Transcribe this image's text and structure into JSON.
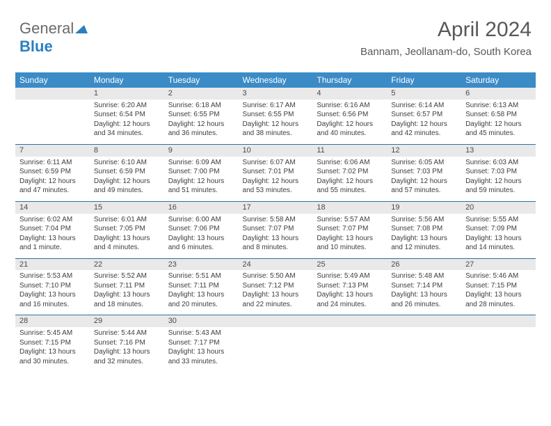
{
  "brand": {
    "part1": "General",
    "part2": "Blue"
  },
  "title": "April 2024",
  "location": "Bannam, Jeollanam-do, South Korea",
  "colors": {
    "header_bg": "#3b8bc7",
    "header_text": "#ffffff",
    "daynum_bg": "#e9e9e9",
    "row_border": "#2f6fa6",
    "text": "#3d3d3d",
    "title_text": "#585858"
  },
  "weekdays": [
    "Sunday",
    "Monday",
    "Tuesday",
    "Wednesday",
    "Thursday",
    "Friday",
    "Saturday"
  ],
  "cell_fontsize": 10,
  "header_fontsize": 12,
  "title_fontsize": 30,
  "location_fontsize": 15,
  "weeks": [
    [
      null,
      {
        "n": "1",
        "sr": "Sunrise: 6:20 AM",
        "ss": "Sunset: 6:54 PM",
        "dl": "Daylight: 12 hours and 34 minutes."
      },
      {
        "n": "2",
        "sr": "Sunrise: 6:18 AM",
        "ss": "Sunset: 6:55 PM",
        "dl": "Daylight: 12 hours and 36 minutes."
      },
      {
        "n": "3",
        "sr": "Sunrise: 6:17 AM",
        "ss": "Sunset: 6:55 PM",
        "dl": "Daylight: 12 hours and 38 minutes."
      },
      {
        "n": "4",
        "sr": "Sunrise: 6:16 AM",
        "ss": "Sunset: 6:56 PM",
        "dl": "Daylight: 12 hours and 40 minutes."
      },
      {
        "n": "5",
        "sr": "Sunrise: 6:14 AM",
        "ss": "Sunset: 6:57 PM",
        "dl": "Daylight: 12 hours and 42 minutes."
      },
      {
        "n": "6",
        "sr": "Sunrise: 6:13 AM",
        "ss": "Sunset: 6:58 PM",
        "dl": "Daylight: 12 hours and 45 minutes."
      }
    ],
    [
      {
        "n": "7",
        "sr": "Sunrise: 6:11 AM",
        "ss": "Sunset: 6:59 PM",
        "dl": "Daylight: 12 hours and 47 minutes."
      },
      {
        "n": "8",
        "sr": "Sunrise: 6:10 AM",
        "ss": "Sunset: 6:59 PM",
        "dl": "Daylight: 12 hours and 49 minutes."
      },
      {
        "n": "9",
        "sr": "Sunrise: 6:09 AM",
        "ss": "Sunset: 7:00 PM",
        "dl": "Daylight: 12 hours and 51 minutes."
      },
      {
        "n": "10",
        "sr": "Sunrise: 6:07 AM",
        "ss": "Sunset: 7:01 PM",
        "dl": "Daylight: 12 hours and 53 minutes."
      },
      {
        "n": "11",
        "sr": "Sunrise: 6:06 AM",
        "ss": "Sunset: 7:02 PM",
        "dl": "Daylight: 12 hours and 55 minutes."
      },
      {
        "n": "12",
        "sr": "Sunrise: 6:05 AM",
        "ss": "Sunset: 7:03 PM",
        "dl": "Daylight: 12 hours and 57 minutes."
      },
      {
        "n": "13",
        "sr": "Sunrise: 6:03 AM",
        "ss": "Sunset: 7:03 PM",
        "dl": "Daylight: 12 hours and 59 minutes."
      }
    ],
    [
      {
        "n": "14",
        "sr": "Sunrise: 6:02 AM",
        "ss": "Sunset: 7:04 PM",
        "dl": "Daylight: 13 hours and 1 minute."
      },
      {
        "n": "15",
        "sr": "Sunrise: 6:01 AM",
        "ss": "Sunset: 7:05 PM",
        "dl": "Daylight: 13 hours and 4 minutes."
      },
      {
        "n": "16",
        "sr": "Sunrise: 6:00 AM",
        "ss": "Sunset: 7:06 PM",
        "dl": "Daylight: 13 hours and 6 minutes."
      },
      {
        "n": "17",
        "sr": "Sunrise: 5:58 AM",
        "ss": "Sunset: 7:07 PM",
        "dl": "Daylight: 13 hours and 8 minutes."
      },
      {
        "n": "18",
        "sr": "Sunrise: 5:57 AM",
        "ss": "Sunset: 7:07 PM",
        "dl": "Daylight: 13 hours and 10 minutes."
      },
      {
        "n": "19",
        "sr": "Sunrise: 5:56 AM",
        "ss": "Sunset: 7:08 PM",
        "dl": "Daylight: 13 hours and 12 minutes."
      },
      {
        "n": "20",
        "sr": "Sunrise: 5:55 AM",
        "ss": "Sunset: 7:09 PM",
        "dl": "Daylight: 13 hours and 14 minutes."
      }
    ],
    [
      {
        "n": "21",
        "sr": "Sunrise: 5:53 AM",
        "ss": "Sunset: 7:10 PM",
        "dl": "Daylight: 13 hours and 16 minutes."
      },
      {
        "n": "22",
        "sr": "Sunrise: 5:52 AM",
        "ss": "Sunset: 7:11 PM",
        "dl": "Daylight: 13 hours and 18 minutes."
      },
      {
        "n": "23",
        "sr": "Sunrise: 5:51 AM",
        "ss": "Sunset: 7:11 PM",
        "dl": "Daylight: 13 hours and 20 minutes."
      },
      {
        "n": "24",
        "sr": "Sunrise: 5:50 AM",
        "ss": "Sunset: 7:12 PM",
        "dl": "Daylight: 13 hours and 22 minutes."
      },
      {
        "n": "25",
        "sr": "Sunrise: 5:49 AM",
        "ss": "Sunset: 7:13 PM",
        "dl": "Daylight: 13 hours and 24 minutes."
      },
      {
        "n": "26",
        "sr": "Sunrise: 5:48 AM",
        "ss": "Sunset: 7:14 PM",
        "dl": "Daylight: 13 hours and 26 minutes."
      },
      {
        "n": "27",
        "sr": "Sunrise: 5:46 AM",
        "ss": "Sunset: 7:15 PM",
        "dl": "Daylight: 13 hours and 28 minutes."
      }
    ],
    [
      {
        "n": "28",
        "sr": "Sunrise: 5:45 AM",
        "ss": "Sunset: 7:15 PM",
        "dl": "Daylight: 13 hours and 30 minutes."
      },
      {
        "n": "29",
        "sr": "Sunrise: 5:44 AM",
        "ss": "Sunset: 7:16 PM",
        "dl": "Daylight: 13 hours and 32 minutes."
      },
      {
        "n": "30",
        "sr": "Sunrise: 5:43 AM",
        "ss": "Sunset: 7:17 PM",
        "dl": "Daylight: 13 hours and 33 minutes."
      },
      null,
      null,
      null,
      null
    ]
  ]
}
